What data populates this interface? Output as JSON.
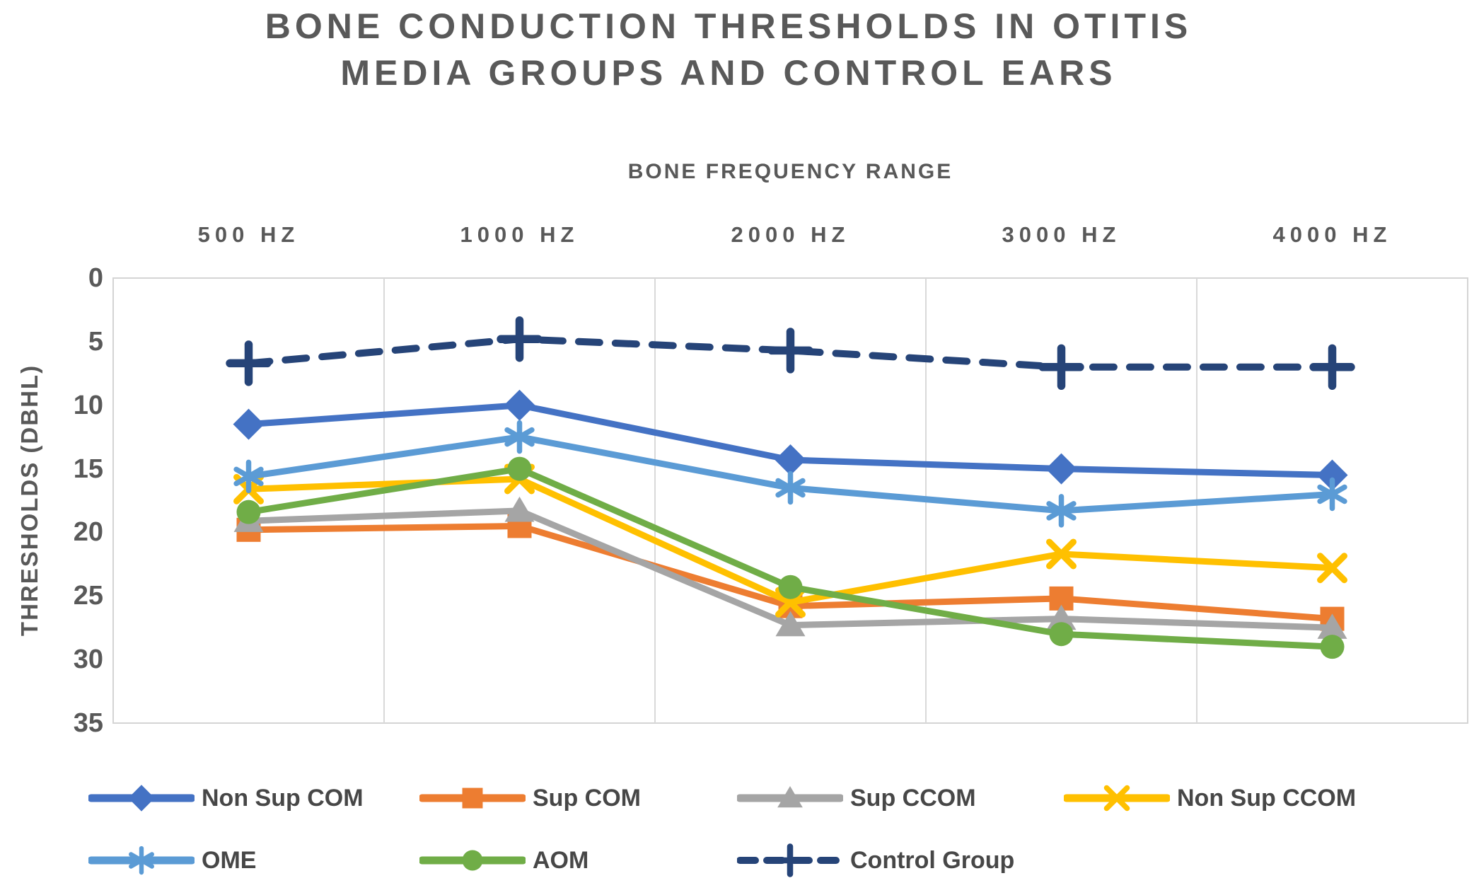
{
  "title": {
    "line1": "BONE CONDUCTION THRESHOLDS IN OTITIS",
    "line2": "MEDIA GROUPS AND CONTROL EARS"
  },
  "x_axis_title": "BONE FREQUENCY RANGE",
  "y_axis_title": "THRESHOLDS (DBHL)",
  "chart_data": {
    "type": "line",
    "title": "BONE CONDUCTION THRESHOLDS IN OTITIS MEDIA GROUPS AND CONTROL EARS",
    "xlabel": "BONE FREQUENCY RANGE",
    "ylabel": "THRESHOLDS (DBHL)",
    "categories": [
      "500 HZ",
      "1000 HZ",
      "2000 HZ",
      "3000 HZ",
      "4000 HZ"
    ],
    "y_ticks": [
      0,
      5,
      10,
      15,
      20,
      25,
      30,
      35
    ],
    "ylim": [
      0,
      35
    ],
    "y_inverted": true,
    "grid": "vertical-only",
    "legend_position": "bottom",
    "series": [
      {
        "name": "Non Sup COM",
        "color": "#4472C4",
        "marker": "diamond",
        "dashed": false,
        "values": [
          11.5,
          10,
          14.3,
          15,
          15.5
        ]
      },
      {
        "name": "Sup COM",
        "color": "#ED7D31",
        "marker": "square",
        "dashed": false,
        "values": [
          19.8,
          19.5,
          25.8,
          25.2,
          26.8
        ]
      },
      {
        "name": "Sup CCOM",
        "color": "#A5A5A5",
        "marker": "triangle",
        "dashed": false,
        "values": [
          19.1,
          18.3,
          27.3,
          26.8,
          27.5
        ]
      },
      {
        "name": "Non Sup CCOM",
        "color": "#FFC000",
        "marker": "x",
        "dashed": false,
        "values": [
          16.6,
          15.8,
          25.5,
          21.7,
          22.8
        ]
      },
      {
        "name": "OME",
        "color": "#5B9BD5",
        "marker": "asterisk",
        "dashed": false,
        "values": [
          15.6,
          12.5,
          16.5,
          18.3,
          17
        ]
      },
      {
        "name": "AOM",
        "color": "#70AD47",
        "marker": "circle",
        "dashed": false,
        "values": [
          18.4,
          15,
          24.3,
          28,
          29
        ]
      },
      {
        "name": "Control Group",
        "color": "#264478",
        "marker": "plus",
        "dashed": true,
        "values": [
          6.7,
          4.8,
          5.7,
          7,
          7
        ]
      }
    ],
    "legend_rows": [
      [
        0,
        1,
        2,
        3
      ],
      [
        4,
        5,
        6
      ]
    ]
  },
  "colors": {
    "text": "#595959",
    "legend_text": "#474747",
    "gridline": "#D9D9D9",
    "plot_border": "#D4D4D4",
    "background": "#FFFFFF"
  }
}
